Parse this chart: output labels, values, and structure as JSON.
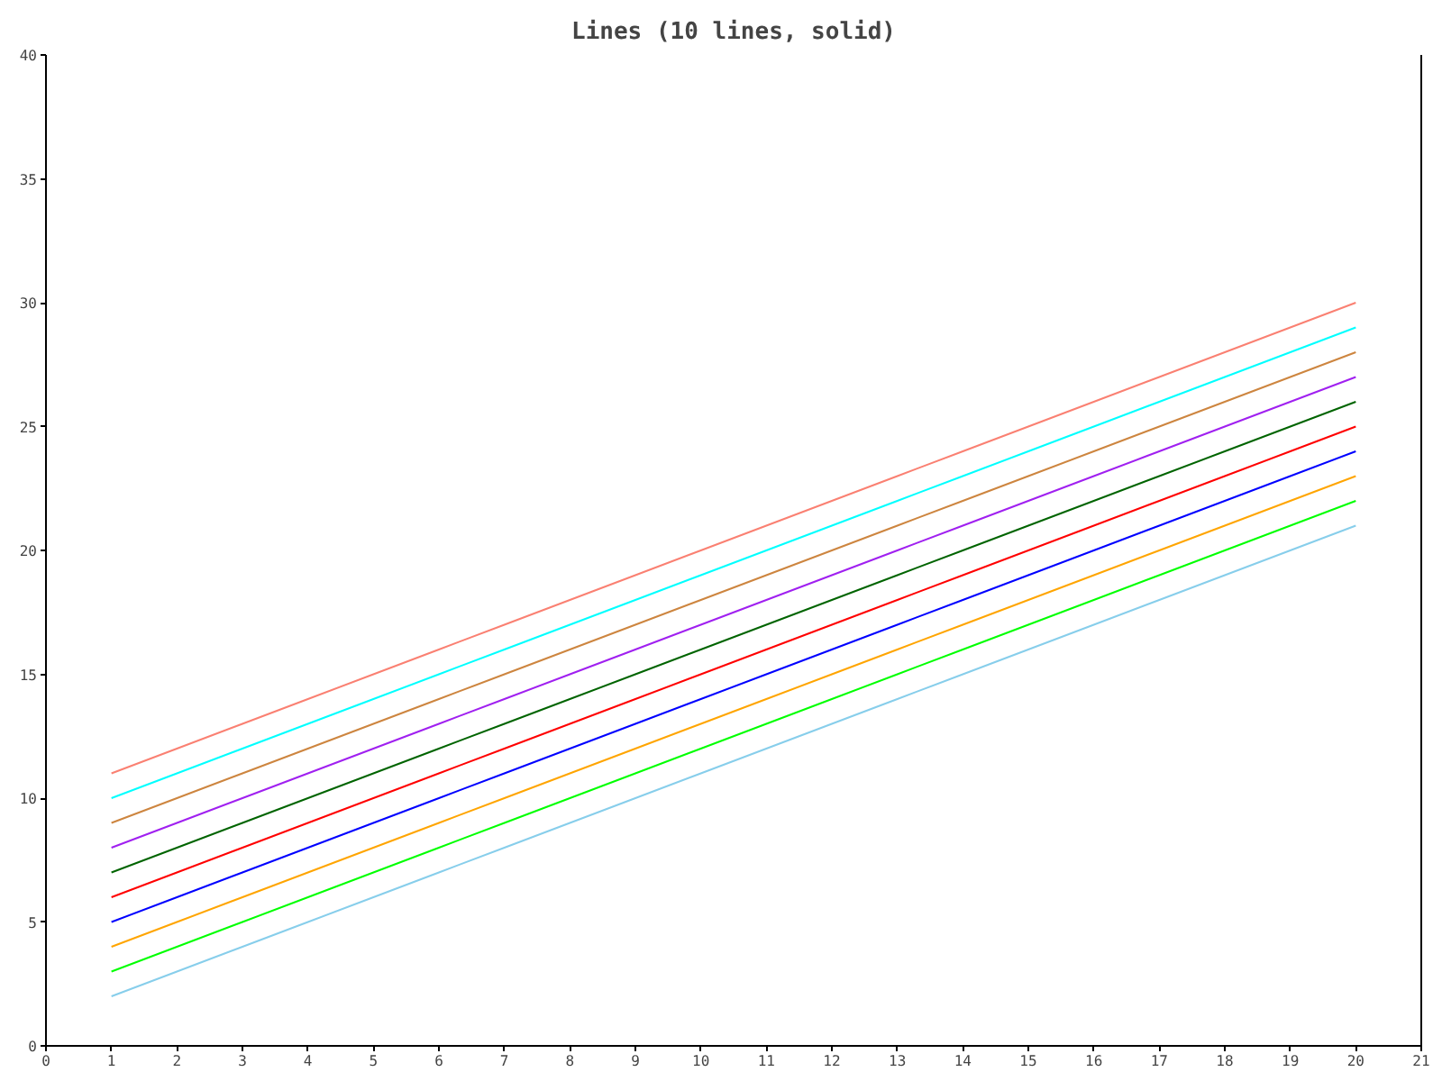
{
  "chart_data": {
    "type": "line",
    "title": "Lines (10 lines, solid)",
    "x": [
      1,
      2,
      3,
      4,
      5,
      6,
      7,
      8,
      9,
      10,
      11,
      12,
      13,
      14,
      15,
      16,
      17,
      18,
      19,
      20
    ],
    "series": [
      {
        "color": "#87ceeb",
        "values": [
          2,
          3,
          4,
          5,
          6,
          7,
          8,
          9,
          10,
          11,
          12,
          13,
          14,
          15,
          16,
          17,
          18,
          19,
          20,
          21
        ]
      },
      {
        "color": "#00ff00",
        "values": [
          3,
          4,
          5,
          6,
          7,
          8,
          9,
          10,
          11,
          12,
          13,
          14,
          15,
          16,
          17,
          18,
          19,
          20,
          21,
          22
        ]
      },
      {
        "color": "#ffa500",
        "values": [
          4,
          5,
          6,
          7,
          8,
          9,
          10,
          11,
          12,
          13,
          14,
          15,
          16,
          17,
          18,
          19,
          20,
          21,
          22,
          23
        ]
      },
      {
        "color": "#0000ff",
        "values": [
          5,
          6,
          7,
          8,
          9,
          10,
          11,
          12,
          13,
          14,
          15,
          16,
          17,
          18,
          19,
          20,
          21,
          22,
          23,
          24
        ]
      },
      {
        "color": "#ff0000",
        "values": [
          6,
          7,
          8,
          9,
          10,
          11,
          12,
          13,
          14,
          15,
          16,
          17,
          18,
          19,
          20,
          21,
          22,
          23,
          24,
          25
        ]
      },
      {
        "color": "#006400",
        "values": [
          7,
          8,
          9,
          10,
          11,
          12,
          13,
          14,
          15,
          16,
          17,
          18,
          19,
          20,
          21,
          22,
          23,
          24,
          25,
          26
        ]
      },
      {
        "color": "#a020f0",
        "values": [
          8,
          9,
          10,
          11,
          12,
          13,
          14,
          15,
          16,
          17,
          18,
          19,
          20,
          21,
          22,
          23,
          24,
          25,
          26,
          27
        ]
      },
      {
        "color": "#cd853f",
        "values": [
          9,
          10,
          11,
          12,
          13,
          14,
          15,
          16,
          17,
          18,
          19,
          20,
          21,
          22,
          23,
          24,
          25,
          26,
          27,
          28
        ]
      },
      {
        "color": "#00ffff",
        "values": [
          10,
          11,
          12,
          13,
          14,
          15,
          16,
          17,
          18,
          19,
          20,
          21,
          22,
          23,
          24,
          25,
          26,
          27,
          28,
          29
        ]
      },
      {
        "color": "#fa8072",
        "values": [
          11,
          12,
          13,
          14,
          15,
          16,
          17,
          18,
          19,
          20,
          21,
          22,
          23,
          24,
          25,
          26,
          27,
          28,
          29,
          30
        ]
      }
    ],
    "xlim": [
      0,
      21
    ],
    "xticks": [
      0,
      1,
      2,
      3,
      4,
      5,
      6,
      7,
      8,
      9,
      10,
      11,
      12,
      13,
      14,
      15,
      16,
      17,
      18,
      19,
      20,
      21
    ],
    "ylim": [
      0,
      40
    ],
    "yticks": [
      0,
      5,
      10,
      15,
      20,
      25,
      30,
      35,
      40
    ],
    "grid": false,
    "marker": "none",
    "line_style": "solid"
  }
}
